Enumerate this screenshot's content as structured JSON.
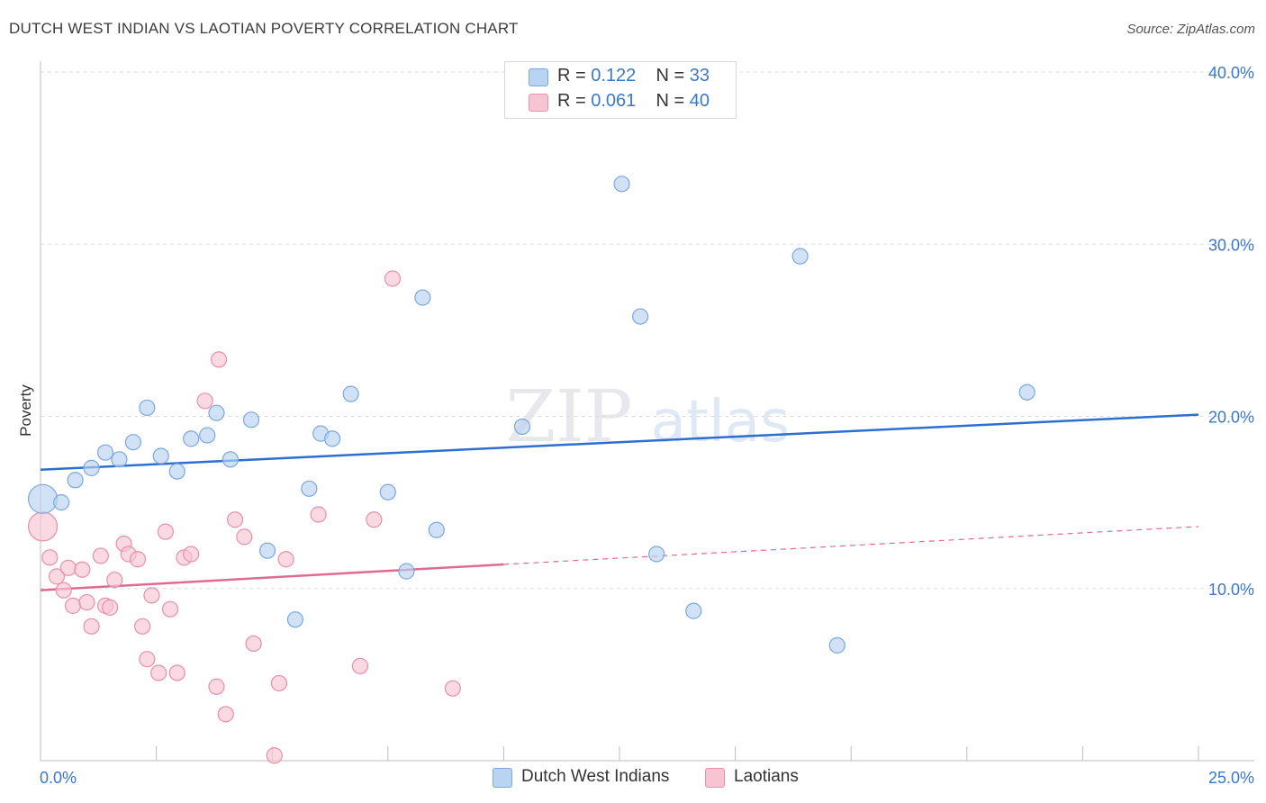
{
  "title": "DUTCH WEST INDIAN VS LAOTIAN POVERTY CORRELATION CHART",
  "source": "Source: ZipAtlas.com",
  "watermark": {
    "zip": "ZIP",
    "atlas": "atlas"
  },
  "legend": {
    "series1": {
      "r_label": "R =",
      "r_value": "0.122",
      "n_label": "N =",
      "n_value": "33"
    },
    "series2": {
      "r_label": "R =",
      "r_value": "0.061",
      "n_label": "N =",
      "n_value": "40"
    }
  },
  "bottom_legend": {
    "series1": "Dutch West Indians",
    "series2": "Laotians"
  },
  "colors": {
    "blue_fill": "#b9d3f3",
    "blue_stroke": "#7ba7e0",
    "blue_line": "#2c6fd1",
    "pink_fill": "#f7c4d3",
    "pink_stroke": "#e88fab",
    "pink_line": "#e06a92",
    "axis_text": "#3a78c9",
    "grid": "#dedede"
  },
  "chart_data": {
    "type": "scatter",
    "title": "DUTCH WEST INDIAN VS LAOTIAN POVERTY CORRELATION CHART",
    "xlabel": "",
    "ylabel": "Poverty",
    "xlim": [
      0,
      25
    ],
    "ylim": [
      0,
      40
    ],
    "x_tick_labels": [
      "0.0%",
      "25.0%"
    ],
    "y_ticks": [
      10,
      20,
      30,
      40
    ],
    "y_tick_labels": [
      "10.0%",
      "20.0%",
      "30.0%",
      "40.0%"
    ],
    "series": [
      {
        "name": "Dutch West Indians",
        "r": 0.122,
        "n": 33,
        "trend": {
          "x": [
            0,
            25
          ],
          "y": [
            16.9,
            20.1
          ]
        },
        "points": [
          {
            "x": 0.05,
            "y": 15.2,
            "big": true
          },
          {
            "x": 0.45,
            "y": 15.0
          },
          {
            "x": 0.75,
            "y": 16.3
          },
          {
            "x": 1.1,
            "y": 17.0
          },
          {
            "x": 1.4,
            "y": 17.9
          },
          {
            "x": 1.7,
            "y": 17.5
          },
          {
            "x": 2.0,
            "y": 18.5
          },
          {
            "x": 2.3,
            "y": 20.5
          },
          {
            "x": 2.6,
            "y": 17.7
          },
          {
            "x": 2.95,
            "y": 16.8
          },
          {
            "x": 3.25,
            "y": 18.7
          },
          {
            "x": 3.6,
            "y": 18.9
          },
          {
            "x": 3.8,
            "y": 20.2
          },
          {
            "x": 4.1,
            "y": 17.5
          },
          {
            "x": 4.55,
            "y": 19.8
          },
          {
            "x": 4.9,
            "y": 12.2
          },
          {
            "x": 5.5,
            "y": 8.2
          },
          {
            "x": 5.8,
            "y": 15.8
          },
          {
            "x": 6.05,
            "y": 19.0
          },
          {
            "x": 6.3,
            "y": 18.7
          },
          {
            "x": 6.7,
            "y": 21.3
          },
          {
            "x": 7.5,
            "y": 15.6
          },
          {
            "x": 7.9,
            "y": 11.0
          },
          {
            "x": 8.25,
            "y": 26.9
          },
          {
            "x": 8.55,
            "y": 13.4
          },
          {
            "x": 10.4,
            "y": 19.4
          },
          {
            "x": 12.55,
            "y": 33.5
          },
          {
            "x": 12.95,
            "y": 25.8
          },
          {
            "x": 13.3,
            "y": 12.0
          },
          {
            "x": 14.1,
            "y": 8.7
          },
          {
            "x": 16.4,
            "y": 29.3
          },
          {
            "x": 17.2,
            "y": 6.7
          },
          {
            "x": 21.3,
            "y": 21.4
          }
        ]
      },
      {
        "name": "Laotians",
        "r": 0.061,
        "n": 40,
        "trend": {
          "x": [
            0,
            10.0,
            25
          ],
          "y": [
            9.9,
            11.4,
            13.6
          ],
          "solid_until_x": 10.0
        },
        "points": [
          {
            "x": 0.05,
            "y": 13.6,
            "big": true
          },
          {
            "x": 0.2,
            "y": 11.8
          },
          {
            "x": 0.35,
            "y": 10.7
          },
          {
            "x": 0.5,
            "y": 9.9
          },
          {
            "x": 0.6,
            "y": 11.2
          },
          {
            "x": 0.7,
            "y": 9.0
          },
          {
            "x": 0.9,
            "y": 11.1
          },
          {
            "x": 1.0,
            "y": 9.2
          },
          {
            "x": 1.1,
            "y": 7.8
          },
          {
            "x": 1.3,
            "y": 11.9
          },
          {
            "x": 1.4,
            "y": 9.0
          },
          {
            "x": 1.5,
            "y": 8.9
          },
          {
            "x": 1.6,
            "y": 10.5
          },
          {
            "x": 1.8,
            "y": 12.6
          },
          {
            "x": 1.9,
            "y": 12.0
          },
          {
            "x": 2.1,
            "y": 11.7
          },
          {
            "x": 2.2,
            "y": 7.8
          },
          {
            "x": 2.3,
            "y": 5.9
          },
          {
            "x": 2.4,
            "y": 9.6
          },
          {
            "x": 2.55,
            "y": 5.1
          },
          {
            "x": 2.7,
            "y": 13.3
          },
          {
            "x": 2.8,
            "y": 8.8
          },
          {
            "x": 2.95,
            "y": 5.1
          },
          {
            "x": 3.1,
            "y": 11.8
          },
          {
            "x": 3.25,
            "y": 12.0
          },
          {
            "x": 3.55,
            "y": 20.9
          },
          {
            "x": 3.8,
            "y": 4.3
          },
          {
            "x": 3.85,
            "y": 23.3
          },
          {
            "x": 4.0,
            "y": 2.7
          },
          {
            "x": 4.2,
            "y": 14.0
          },
          {
            "x": 4.4,
            "y": 13.0
          },
          {
            "x": 4.6,
            "y": 6.8
          },
          {
            "x": 5.05,
            "y": 0.3
          },
          {
            "x": 5.15,
            "y": 4.5
          },
          {
            "x": 5.3,
            "y": 11.7
          },
          {
            "x": 6.0,
            "y": 14.3
          },
          {
            "x": 6.9,
            "y": 5.5
          },
          {
            "x": 7.2,
            "y": 14.0
          },
          {
            "x": 7.6,
            "y": 28.0
          },
          {
            "x": 8.9,
            "y": 4.2
          }
        ]
      }
    ]
  }
}
